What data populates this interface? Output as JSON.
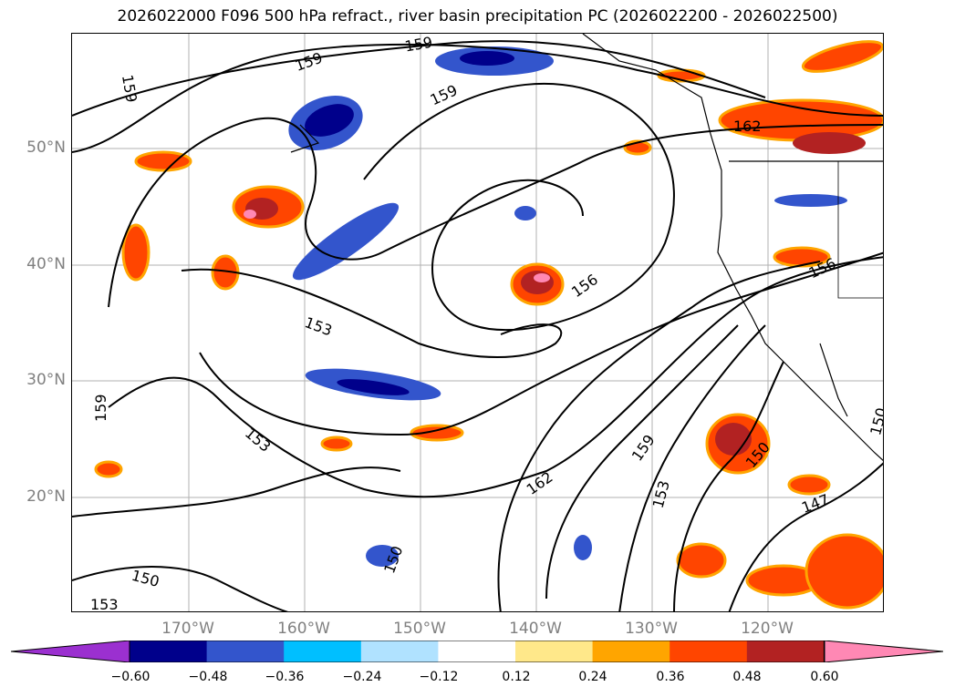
{
  "title": "2026022000 F096 500 hPa refract., river basin precipitation PC (2026022200 - 2026022500)",
  "map": {
    "lat_labels": [
      "50°N",
      "40°N",
      "30°N",
      "20°N"
    ],
    "lon_labels": [
      "170°W",
      "160°W",
      "150°W",
      "140°W",
      "130°W",
      "120°W"
    ],
    "contour_labels": [
      "159",
      "159",
      "159",
      "162",
      "153",
      "156",
      "159",
      "153",
      "162",
      "159",
      "153",
      "150",
      "150",
      "147",
      "150",
      "153",
      "156",
      "150"
    ],
    "axis_label_color": "#808080"
  },
  "colorbar": {
    "ticks": [
      "−0.60",
      "−0.48",
      "−0.36",
      "−0.24",
      "−0.12",
      "0.12",
      "0.24",
      "0.36",
      "0.48",
      "0.60"
    ],
    "colors": [
      "#9b30d0",
      "#00008b",
      "#3355cc",
      "#00bfff",
      "#b0e2ff",
      "#ffffff",
      "#ffe88a",
      "#ffa500",
      "#ff4500",
      "#b22222",
      "#ff88b4"
    ]
  }
}
